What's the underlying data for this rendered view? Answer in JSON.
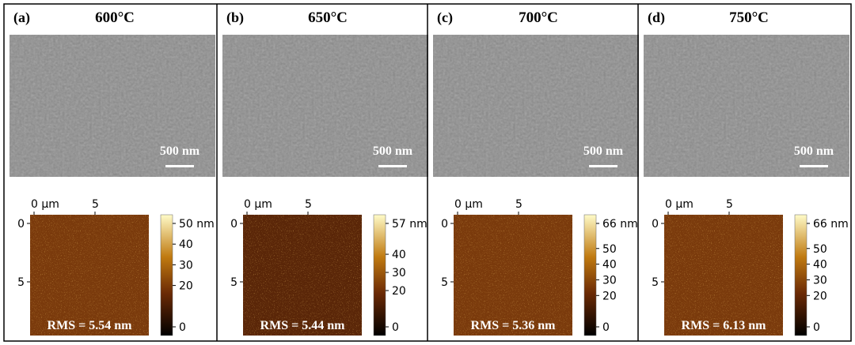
{
  "panels": [
    {
      "label": "(a)",
      "temperature": "600°C",
      "scale_bar": "500 nm",
      "afm": {
        "x_ticks": [
          {
            "value": 0,
            "label": "0 µm"
          },
          5
        ],
        "y_ticks": [
          0,
          5
        ],
        "colorbar_ticks": [
          {
            "value": 50,
            "label": "50 nm"
          },
          40,
          30,
          20,
          0
        ],
        "rms": "RMS = 5.54 nm"
      }
    },
    {
      "label": "(b)",
      "temperature": "650°C",
      "scale_bar": "500 nm",
      "afm": {
        "x_ticks": [
          {
            "value": 0,
            "label": "0 µm"
          },
          5
        ],
        "y_ticks": [
          0,
          5
        ],
        "colorbar_ticks": [
          {
            "value": 57,
            "label": "57 nm"
          },
          40,
          30,
          20,
          0
        ],
        "rms": "RMS = 5.44 nm"
      }
    },
    {
      "label": "(c)",
      "temperature": "700°C",
      "scale_bar": "500 nm",
      "afm": {
        "x_ticks": [
          {
            "value": 0,
            "label": "0 µm"
          },
          5
        ],
        "y_ticks": [
          0,
          5
        ],
        "colorbar_ticks": [
          {
            "value": 66,
            "label": "66 nm"
          },
          50,
          40,
          30,
          20,
          0
        ],
        "rms": "RMS = 5.36 nm"
      }
    },
    {
      "label": "(d)",
      "temperature": "750°C",
      "scale_bar": "500 nm",
      "afm": {
        "x_ticks": [
          {
            "value": 0,
            "label": "0 µm"
          },
          5
        ],
        "y_ticks": [
          0,
          5
        ],
        "colorbar_ticks": [
          {
            "value": 66,
            "label": "66 nm"
          },
          50,
          40,
          30,
          20,
          0
        ],
        "rms": "RMS = 6.13 nm"
      }
    }
  ]
}
